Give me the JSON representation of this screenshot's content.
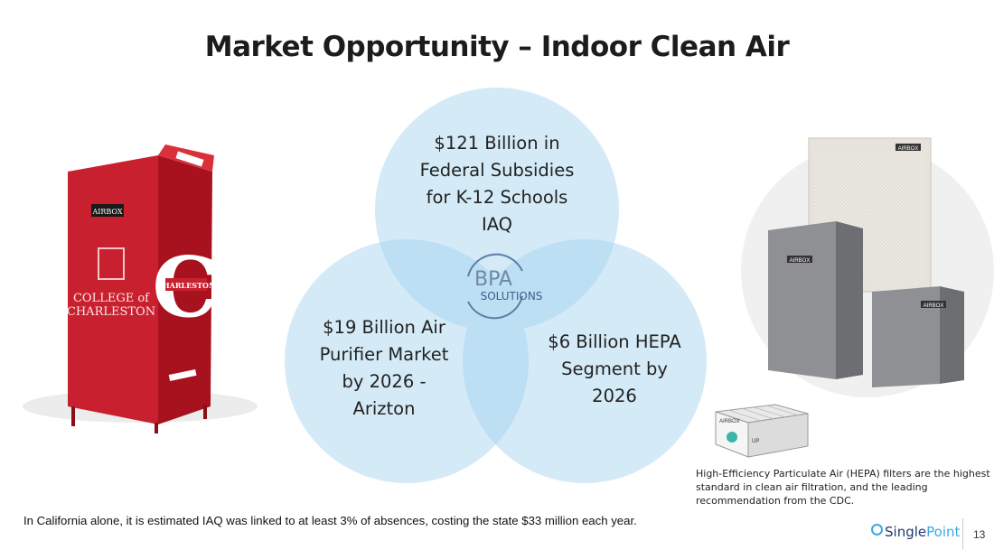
{
  "slide": {
    "title": "Market Opportunity – Indoor Clean Air",
    "venn": {
      "top": [
        "$121 Billion in",
        "Federal Subsidies",
        "for K-12 Schools",
        "IAQ"
      ],
      "left": [
        "$19 Billion Air",
        "Purifier Market",
        "by 2026 -",
        "Arizton"
      ],
      "right": [
        "$6 Billion HEPA",
        "Segment by",
        "2026"
      ],
      "center_logo_main": "BPA",
      "center_logo_sub": "SOLUTIONS"
    },
    "left_image": {
      "brand": "AIRBOX",
      "text_line1": "COLLEGE of",
      "text_line2": "CHARLESTON",
      "side_letter": "C",
      "side_text": "CHARLESTON"
    },
    "right_image": {
      "brand_labels": [
        "AIRBOX",
        "AIRBOX",
        "AIRBOX"
      ]
    },
    "filter_image": {
      "brand": "AIRBOX",
      "label": "UP"
    },
    "caption": "High-Efficiency Particulate Air (HEPA) filters are the highest standard in clean air filtration, and the leading recommendation from the CDC.",
    "bottom_note": "In California alone, it is estimated IAQ was linked to at least 3% of absences, costing the state $33 million each year.",
    "footer": {
      "brand_prefix": "Single",
      "brand_suffix": "Point",
      "page_number": "13"
    },
    "colors": {
      "circle": "#d4eaf7",
      "overlap": "#b9dcf2",
      "product_red": "#c8202e",
      "brand_blue": "#1e3a6e"
    }
  }
}
